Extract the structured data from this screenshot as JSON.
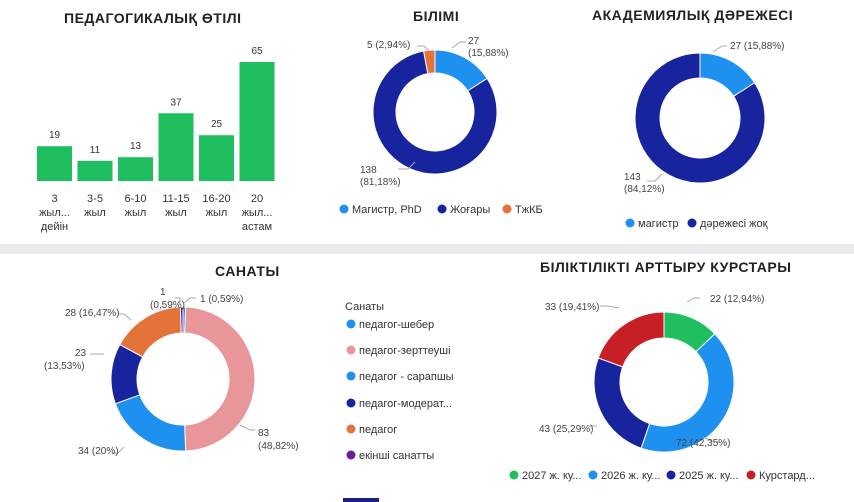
{
  "colors": {
    "green": "#1fbe5f",
    "light_blue": "#1e90f0",
    "dark_blue": "#17249d",
    "orange": "#e4733a",
    "pink": "#e8969a",
    "purple": "#6a1b9a",
    "red": "#c61f25",
    "tab_indicator": "#1a237e"
  },
  "chart_data": [
    {
      "id": "experience",
      "type": "bar",
      "title": "ПЕДАГОГИКАЛЫҚ ӨТІЛІ",
      "categories": [
        [
          "3",
          "жыл...",
          "дейін"
        ],
        [
          "3-5",
          "жыл"
        ],
        [
          "6-10",
          "жыл"
        ],
        [
          "11-15",
          "жыл"
        ],
        [
          "16-20",
          "жыл"
        ],
        [
          "20",
          "жыл...",
          "астам"
        ]
      ],
      "values": [
        19,
        11,
        13,
        37,
        25,
        65
      ],
      "data_labels": [
        "19",
        "11",
        "13",
        "37",
        "25",
        "65"
      ],
      "color": "#1fbe5f"
    },
    {
      "id": "education",
      "type": "pie",
      "title": "БІЛІМІ",
      "slices": [
        {
          "name": "Магистр, PhD",
          "value": 27,
          "label": [
            "27",
            "(15,88%)"
          ],
          "color": "#1e90f0"
        },
        {
          "name": "Жоғары",
          "value": 138,
          "label": [
            "138",
            "(81,18%)"
          ],
          "color": "#17249d"
        },
        {
          "name": "ТжКБ",
          "value": 5,
          "label": [
            "5 (2,94%)"
          ],
          "color": "#e4733a"
        }
      ],
      "legend": [
        "Магистр, PhD",
        "Жоғары",
        "ТжКБ"
      ]
    },
    {
      "id": "academic",
      "type": "pie",
      "title": "АКАДЕМИЯЛЫҚ ДӘРЕЖЕСІ",
      "slices": [
        {
          "name": "магистр",
          "value": 27,
          "label": [
            "27 (15,88%)"
          ],
          "color": "#1e90f0"
        },
        {
          "name": "дәрежесі жоқ",
          "value": 143,
          "label": [
            "143",
            "(84,12%)"
          ],
          "color": "#17249d"
        }
      ],
      "legend": [
        "магистр",
        "дәрежесі жоқ"
      ]
    },
    {
      "id": "category",
      "type": "pie",
      "title": "САНАТЫ",
      "legend_title": "Санаты",
      "slices": [
        {
          "name": "педагог-шебер",
          "value": 1,
          "label": [
            "1",
            "(0,59%)"
          ],
          "color": "#1e90f0"
        },
        {
          "name": "педагог-зерттеуші",
          "value": 83,
          "label": [
            "83",
            "(48,82%)"
          ],
          "color": "#e8969a"
        },
        {
          "name": "педагог - сарапшы",
          "value": 34,
          "label": [
            "34 (20%)"
          ],
          "color": "#1e90f0"
        },
        {
          "name": "педагог-модерат...",
          "value": 23,
          "label": [
            "23",
            "(13,53%)"
          ],
          "color": "#17249d"
        },
        {
          "name": "педагог",
          "value": 28,
          "label": [
            "28 (16,47%)"
          ],
          "color": "#e4733a"
        },
        {
          "name": "екінші санатты",
          "value": 1,
          "label": [
            "1 (0,59%)"
          ],
          "color": "#6a1b9a"
        }
      ],
      "legend": [
        "педагог-шебер",
        "педагог-зерттеуші",
        "педагог - сарапшы",
        "педагог-модерат...",
        "педагог",
        "екінші санатты"
      ]
    },
    {
      "id": "courses",
      "type": "pie",
      "title": "БІЛІКТІЛІКТІ АРТТЫРУ КУРСТАРЫ",
      "slices": [
        {
          "name": "2027 ж. ку...",
          "value": 22,
          "label": [
            "22 (12,94%)"
          ],
          "color": "#1fbe5f"
        },
        {
          "name": "2026 ж. ку...",
          "value": 72,
          "label": [
            "72 (42,35%)"
          ],
          "color": "#1e90f0"
        },
        {
          "name": "2025 ж. ку...",
          "value": 43,
          "label": [
            "43 (25,29%)"
          ],
          "color": "#17249d"
        },
        {
          "name": "Курстард...",
          "value": 33,
          "label": [
            "33 (19,41%)"
          ],
          "color": "#c61f25"
        }
      ],
      "legend": [
        "2027 ж. ку...",
        "2026 ж. ку...",
        "2025 ж. ку...",
        "Курстард..."
      ]
    }
  ]
}
